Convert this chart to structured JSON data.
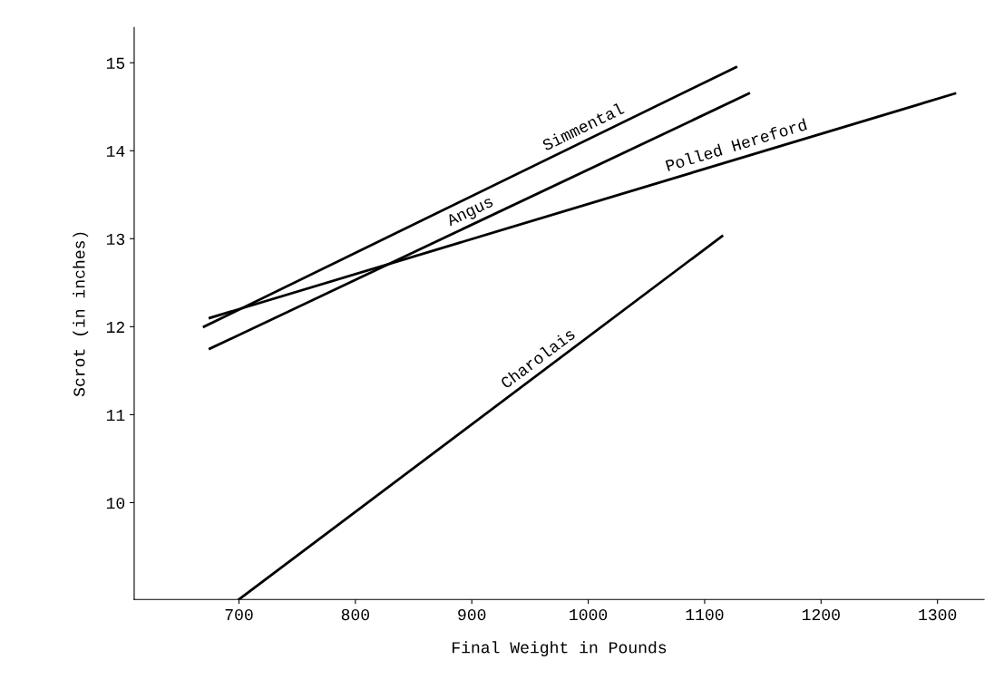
{
  "chart_data": {
    "type": "line",
    "xlabel": "Final Weight in Pounds",
    "ylabel": "Scrot (in inches)",
    "xlim": [
      610,
      1340
    ],
    "ylim": [
      8.9,
      15.4
    ],
    "xticks": [
      700,
      800,
      900,
      1000,
      1100,
      1200,
      1300
    ],
    "yticks": [
      10,
      11,
      12,
      13,
      14,
      15
    ],
    "grid": false,
    "legend": false,
    "marker": "none",
    "line_style": "solid",
    "series": [
      {
        "name": "Simmental",
        "color": "#000000",
        "x": [
          670,
          1127
        ],
        "values": [
          12.0,
          14.95
        ]
      },
      {
        "name": "Angus",
        "color": "#000000",
        "x": [
          675,
          1138
        ],
        "values": [
          11.75,
          14.65
        ]
      },
      {
        "name": "Polled Hereford",
        "color": "#000000",
        "x": [
          675,
          1315
        ],
        "values": [
          12.1,
          14.65
        ]
      },
      {
        "name": "Charolais",
        "color": "#000000",
        "x": [
          700,
          1115
        ],
        "values": [
          8.9,
          13.03
        ]
      }
    ]
  }
}
